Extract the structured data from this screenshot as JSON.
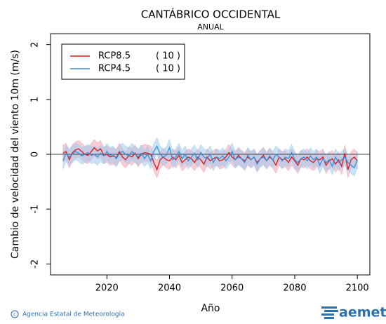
{
  "chart_data": {
    "type": "line",
    "title": "CANTÁBRICO OCCIDENTAL",
    "subtitle": "ANUAL",
    "y_label": "Cambio de velocidad del viento 10m (m/s)",
    "x_label": "Año",
    "xlim": [
      2002,
      2104
    ],
    "xticks": [
      2020,
      2040,
      2060,
      2080,
      2100
    ],
    "ylim": [
      -2.2,
      2.2
    ],
    "yticks": [
      -2,
      -1,
      0,
      1,
      2
    ],
    "x": [
      2006,
      2007,
      2008,
      2009,
      2010,
      2011,
      2012,
      2013,
      2014,
      2015,
      2016,
      2017,
      2018,
      2019,
      2020,
      2021,
      2022,
      2023,
      2024,
      2025,
      2026,
      2027,
      2028,
      2029,
      2030,
      2031,
      2032,
      2033,
      2034,
      2035,
      2036,
      2037,
      2038,
      2039,
      2040,
      2041,
      2042,
      2043,
      2044,
      2045,
      2046,
      2047,
      2048,
      2049,
      2050,
      2051,
      2052,
      2053,
      2054,
      2055,
      2056,
      2057,
      2058,
      2059,
      2060,
      2061,
      2062,
      2063,
      2064,
      2065,
      2066,
      2067,
      2068,
      2069,
      2070,
      2071,
      2072,
      2073,
      2074,
      2075,
      2076,
      2077,
      2078,
      2079,
      2080,
      2081,
      2082,
      2083,
      2084,
      2085,
      2086,
      2087,
      2088,
      2089,
      2090,
      2091,
      2092,
      2093,
      2094,
      2095,
      2096,
      2097,
      2098,
      2099,
      2100
    ],
    "series": [
      {
        "name": "RCP8.5",
        "count_label": "( 10 )",
        "color": "#d7191c",
        "band_color": "#f4a0b0",
        "values": [
          0.02,
          0.05,
          -0.1,
          0.03,
          0.08,
          0.1,
          0.05,
          0.0,
          -0.02,
          0.05,
          0.12,
          0.06,
          0.1,
          -0.02,
          0.0,
          -0.05,
          -0.03,
          -0.06,
          0.05,
          -0.05,
          -0.1,
          -0.02,
          -0.05,
          0.02,
          -0.08,
          0.0,
          0.03,
          0.02,
          0.0,
          -0.15,
          -0.28,
          -0.1,
          -0.05,
          -0.1,
          -0.12,
          -0.05,
          -0.1,
          -0.02,
          -0.15,
          -0.1,
          -0.05,
          -0.08,
          -0.15,
          -0.05,
          -0.1,
          -0.18,
          -0.05,
          -0.12,
          -0.08,
          -0.05,
          -0.12,
          -0.1,
          -0.05,
          0.03,
          -0.05,
          -0.1,
          -0.02,
          -0.08,
          -0.12,
          -0.05,
          -0.1,
          -0.05,
          -0.15,
          -0.08,
          -0.02,
          -0.12,
          -0.05,
          -0.1,
          -0.2,
          -0.05,
          -0.1,
          -0.08,
          -0.15,
          -0.05,
          -0.12,
          -0.2,
          -0.08,
          -0.1,
          -0.05,
          -0.12,
          -0.15,
          -0.08,
          -0.1,
          -0.05,
          -0.2,
          -0.12,
          -0.08,
          -0.18,
          -0.1,
          -0.22,
          0.02,
          -0.28,
          -0.1,
          -0.05,
          -0.12
        ],
        "upper": [
          0.17,
          0.2,
          0.05,
          0.18,
          0.23,
          0.25,
          0.2,
          0.15,
          0.13,
          0.2,
          0.27,
          0.21,
          0.25,
          0.13,
          0.15,
          0.1,
          0.12,
          0.09,
          0.2,
          0.1,
          0.05,
          0.13,
          0.1,
          0.17,
          0.07,
          0.15,
          0.18,
          0.17,
          0.15,
          0.0,
          -0.13,
          0.05,
          0.1,
          0.05,
          0.03,
          0.1,
          0.05,
          0.13,
          0.0,
          0.05,
          0.1,
          0.07,
          0.0,
          0.1,
          0.05,
          -0.03,
          0.1,
          0.03,
          0.07,
          0.1,
          0.03,
          0.05,
          0.1,
          0.18,
          0.1,
          0.05,
          0.13,
          0.07,
          0.03,
          0.1,
          0.05,
          0.1,
          0.0,
          0.07,
          0.13,
          0.03,
          0.1,
          0.05,
          -0.05,
          0.1,
          0.05,
          0.07,
          0.0,
          0.1,
          0.03,
          -0.05,
          0.07,
          0.05,
          0.1,
          0.03,
          0.0,
          0.07,
          0.05,
          0.1,
          -0.05,
          0.03,
          0.07,
          -0.03,
          0.05,
          -0.07,
          0.17,
          -0.13,
          0.05,
          0.1,
          0.03
        ],
        "lower": [
          -0.13,
          -0.1,
          -0.25,
          -0.12,
          -0.07,
          -0.05,
          -0.1,
          -0.15,
          -0.17,
          -0.1,
          -0.03,
          -0.09,
          -0.05,
          -0.17,
          -0.15,
          -0.2,
          -0.18,
          -0.21,
          -0.1,
          -0.2,
          -0.25,
          -0.17,
          -0.2,
          -0.13,
          -0.23,
          -0.15,
          -0.12,
          -0.13,
          -0.15,
          -0.3,
          -0.43,
          -0.25,
          -0.2,
          -0.25,
          -0.27,
          -0.2,
          -0.25,
          -0.17,
          -0.3,
          -0.25,
          -0.2,
          -0.23,
          -0.3,
          -0.2,
          -0.25,
          -0.33,
          -0.2,
          -0.27,
          -0.23,
          -0.2,
          -0.27,
          -0.25,
          -0.2,
          -0.12,
          -0.2,
          -0.25,
          -0.17,
          -0.23,
          -0.27,
          -0.2,
          -0.25,
          -0.2,
          -0.3,
          -0.23,
          -0.17,
          -0.27,
          -0.2,
          -0.25,
          -0.35,
          -0.2,
          -0.25,
          -0.23,
          -0.3,
          -0.2,
          -0.27,
          -0.35,
          -0.23,
          -0.25,
          -0.2,
          -0.27,
          -0.3,
          -0.23,
          -0.25,
          -0.2,
          -0.35,
          -0.27,
          -0.23,
          -0.33,
          -0.25,
          -0.37,
          -0.13,
          -0.43,
          -0.25,
          -0.2,
          -0.27
        ]
      },
      {
        "name": "RCP4.5",
        "count_label": "( 10 )",
        "color": "#3a8fd9",
        "band_color": "#9ccbef",
        "values": [
          -0.12,
          0.02,
          -0.05,
          0.0,
          0.05,
          0.02,
          -0.03,
          0.0,
          0.03,
          -0.02,
          0.0,
          -0.05,
          0.02,
          -0.03,
          0.05,
          -0.02,
          0.0,
          -0.08,
          0.02,
          0.05,
          0.0,
          -0.03,
          0.05,
          0.0,
          -0.05,
          0.02,
          -0.08,
          0.0,
          -0.12,
          0.05,
          0.15,
          0.0,
          -0.05,
          -0.02,
          0.12,
          -0.1,
          -0.05,
          0.05,
          -0.08,
          0.0,
          -0.12,
          -0.05,
          0.02,
          -0.1,
          0.03,
          -0.05,
          -0.08,
          0.0,
          -0.15,
          -0.05,
          -0.08,
          -0.03,
          -0.12,
          -0.05,
          0.05,
          -0.1,
          -0.05,
          -0.08,
          -0.15,
          -0.02,
          -0.1,
          -0.05,
          -0.18,
          -0.08,
          -0.05,
          -0.12,
          -0.03,
          -0.1,
          0.0,
          -0.05,
          -0.12,
          -0.05,
          -0.08,
          0.03,
          -0.1,
          -0.15,
          -0.08,
          -0.05,
          -0.12,
          -0.03,
          -0.1,
          -0.05,
          -0.2,
          -0.08,
          -0.15,
          -0.1,
          -0.22,
          -0.05,
          -0.15,
          -0.1,
          -0.05,
          -0.15,
          -0.2,
          -0.25,
          -0.1
        ],
        "upper": [
          0.03,
          0.17,
          0.1,
          0.15,
          0.2,
          0.17,
          0.12,
          0.15,
          0.18,
          0.13,
          0.15,
          0.1,
          0.17,
          0.12,
          0.2,
          0.13,
          0.15,
          0.07,
          0.17,
          0.2,
          0.15,
          0.12,
          0.2,
          0.15,
          0.1,
          0.17,
          0.07,
          0.15,
          0.03,
          0.2,
          0.3,
          0.15,
          0.1,
          0.13,
          0.27,
          0.05,
          0.1,
          0.2,
          0.07,
          0.15,
          0.03,
          0.1,
          0.17,
          0.05,
          0.18,
          0.1,
          0.07,
          0.15,
          0.0,
          0.1,
          0.07,
          0.12,
          0.03,
          0.1,
          0.2,
          0.05,
          0.1,
          0.07,
          0.0,
          0.13,
          0.05,
          0.1,
          -0.03,
          0.07,
          0.1,
          0.03,
          0.12,
          0.05,
          0.15,
          0.1,
          0.03,
          0.1,
          0.07,
          0.18,
          0.05,
          0.0,
          0.07,
          0.1,
          0.03,
          0.12,
          0.05,
          0.1,
          -0.05,
          0.07,
          0.0,
          0.05,
          -0.07,
          0.1,
          0.0,
          0.05,
          0.1,
          0.0,
          -0.05,
          -0.1,
          0.05
        ],
        "lower": [
          -0.27,
          -0.13,
          -0.2,
          -0.15,
          -0.1,
          -0.13,
          -0.18,
          -0.15,
          -0.12,
          -0.17,
          -0.15,
          -0.2,
          -0.13,
          -0.18,
          -0.1,
          -0.17,
          -0.15,
          -0.23,
          -0.13,
          -0.1,
          -0.15,
          -0.18,
          -0.1,
          -0.15,
          -0.2,
          -0.13,
          -0.23,
          -0.15,
          -0.27,
          -0.1,
          0.0,
          -0.15,
          -0.2,
          -0.17,
          -0.03,
          -0.25,
          -0.2,
          -0.1,
          -0.23,
          -0.15,
          -0.27,
          -0.2,
          -0.13,
          -0.25,
          -0.12,
          -0.2,
          -0.23,
          -0.15,
          -0.3,
          -0.2,
          -0.23,
          -0.18,
          -0.27,
          -0.2,
          -0.1,
          -0.25,
          -0.2,
          -0.23,
          -0.3,
          -0.17,
          -0.25,
          -0.2,
          -0.33,
          -0.23,
          -0.2,
          -0.27,
          -0.18,
          -0.25,
          -0.15,
          -0.2,
          -0.27,
          -0.2,
          -0.23,
          -0.12,
          -0.25,
          -0.3,
          -0.23,
          -0.2,
          -0.27,
          -0.18,
          -0.25,
          -0.2,
          -0.35,
          -0.23,
          -0.3,
          -0.25,
          -0.37,
          -0.2,
          -0.3,
          -0.25,
          -0.2,
          -0.3,
          -0.35,
          -0.4,
          -0.25
        ]
      }
    ]
  },
  "footer": {
    "agency": "Agencia Estatal de Meteorología",
    "logo": "aemet"
  }
}
